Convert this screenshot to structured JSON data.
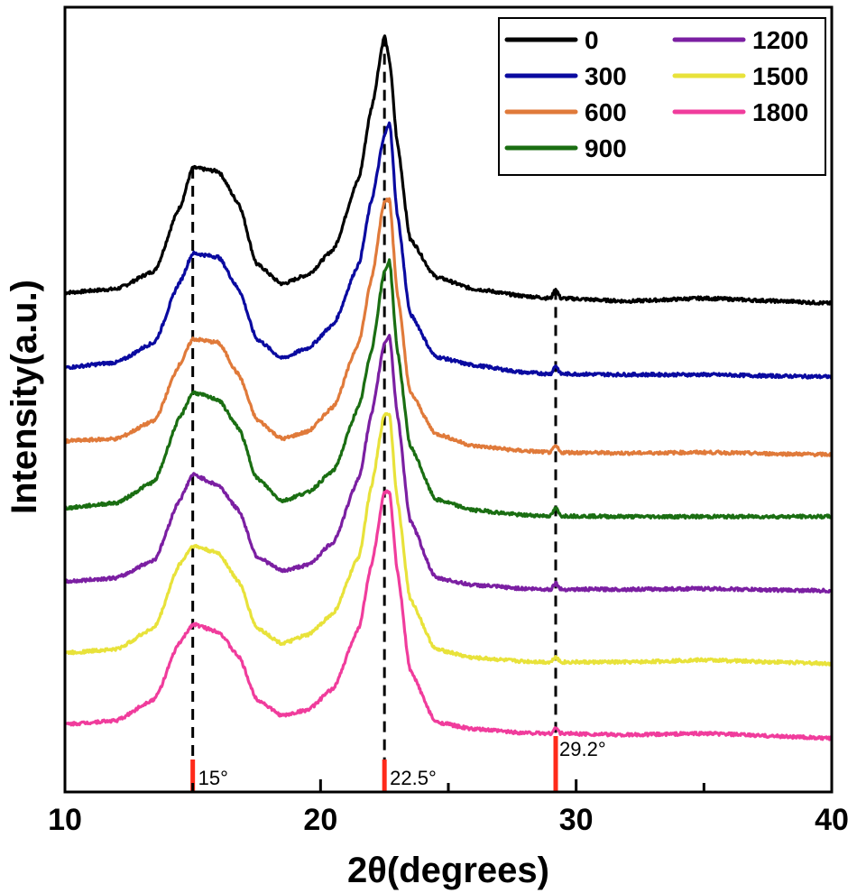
{
  "chart_data": {
    "type": "line",
    "xlabel": "2θ(degrees)",
    "ylabel": "Intensity(a.u.)",
    "xlim": [
      10,
      40
    ],
    "x_ticks": [
      "10",
      "20",
      "30",
      "40"
    ],
    "y_tick_labels_shown": false,
    "legend_position": "top-right",
    "stacked_offset_traces": true,
    "series": [
      {
        "name": "0",
        "color": "#000000",
        "baseline": 7.9,
        "points": [
          [
            10,
            8.0
          ],
          [
            12,
            8.05
          ],
          [
            13.5,
            8.3
          ],
          [
            14.5,
            9.2
          ],
          [
            15,
            9.75
          ],
          [
            16,
            9.7
          ],
          [
            16.8,
            9.25
          ],
          [
            17.5,
            8.4
          ],
          [
            18.5,
            8.12
          ],
          [
            19.5,
            8.25
          ],
          [
            20.5,
            8.6
          ],
          [
            21.5,
            9.6
          ],
          [
            22,
            10.6
          ],
          [
            22.5,
            11.6
          ],
          [
            22.7,
            11.25
          ],
          [
            23,
            10.1
          ],
          [
            23.5,
            8.75
          ],
          [
            24.5,
            8.22
          ],
          [
            26,
            8.05
          ],
          [
            28,
            7.95
          ],
          [
            29,
            7.92
          ],
          [
            29.2,
            8.05
          ],
          [
            29.4,
            7.92
          ],
          [
            32,
            7.88
          ],
          [
            35,
            7.92
          ],
          [
            38,
            7.88
          ],
          [
            40,
            7.85
          ]
        ]
      },
      {
        "name": "300",
        "color": "#0a0aa0",
        "baseline": 6.8,
        "points": [
          [
            10,
            6.95
          ],
          [
            12,
            7.02
          ],
          [
            13.5,
            7.3
          ],
          [
            14.5,
            8.15
          ],
          [
            15,
            8.55
          ],
          [
            16,
            8.5
          ],
          [
            16.8,
            8.05
          ],
          [
            17.5,
            7.35
          ],
          [
            18.5,
            7.08
          ],
          [
            19.5,
            7.22
          ],
          [
            20.5,
            7.55
          ],
          [
            21.5,
            8.4
          ],
          [
            22,
            9.3
          ],
          [
            22.5,
            10.2
          ],
          [
            22.7,
            10.4
          ],
          [
            23,
            9.1
          ],
          [
            23.5,
            7.7
          ],
          [
            24.5,
            7.1
          ],
          [
            26,
            6.98
          ],
          [
            28,
            6.88
          ],
          [
            29,
            6.86
          ],
          [
            29.2,
            6.98
          ],
          [
            29.4,
            6.86
          ],
          [
            32,
            6.85
          ],
          [
            35,
            6.85
          ],
          [
            38,
            6.83
          ],
          [
            40,
            6.82
          ]
        ]
      },
      {
        "name": "600",
        "color": "#e07a3a",
        "baseline": 5.7,
        "points": [
          [
            10,
            5.92
          ],
          [
            12,
            5.95
          ],
          [
            13.5,
            6.2
          ],
          [
            14.5,
            7.0
          ],
          [
            15,
            7.35
          ],
          [
            16,
            7.3
          ],
          [
            16.8,
            6.85
          ],
          [
            17.5,
            6.22
          ],
          [
            18.5,
            5.95
          ],
          [
            19.5,
            6.05
          ],
          [
            20.5,
            6.4
          ],
          [
            21.5,
            7.3
          ],
          [
            22,
            8.2
          ],
          [
            22.5,
            9.3
          ],
          [
            22.7,
            9.3
          ],
          [
            23,
            8.0
          ],
          [
            23.5,
            6.6
          ],
          [
            24.5,
            6.02
          ],
          [
            26,
            5.85
          ],
          [
            28,
            5.78
          ],
          [
            29,
            5.76
          ],
          [
            29.2,
            5.85
          ],
          [
            29.4,
            5.76
          ],
          [
            32,
            5.75
          ],
          [
            35,
            5.76
          ],
          [
            38,
            5.74
          ],
          [
            40,
            5.73
          ]
        ]
      },
      {
        "name": "900",
        "color": "#1a6e12",
        "baseline": 4.8,
        "points": [
          [
            10,
            4.98
          ],
          [
            12,
            5.05
          ],
          [
            13.5,
            5.35
          ],
          [
            14.5,
            6.25
          ],
          [
            15,
            6.6
          ],
          [
            16,
            6.5
          ],
          [
            16.8,
            6.1
          ],
          [
            17.5,
            5.4
          ],
          [
            18.5,
            5.08
          ],
          [
            19.5,
            5.2
          ],
          [
            20.5,
            5.5
          ],
          [
            21.5,
            6.4
          ],
          [
            22,
            7.2
          ],
          [
            22.5,
            8.3
          ],
          [
            22.7,
            8.45
          ],
          [
            23,
            7.2
          ],
          [
            23.5,
            5.85
          ],
          [
            24.5,
            5.1
          ],
          [
            26,
            4.95
          ],
          [
            28,
            4.88
          ],
          [
            29,
            4.87
          ],
          [
            29.2,
            4.98
          ],
          [
            29.4,
            4.87
          ],
          [
            32,
            4.86
          ],
          [
            35,
            4.86
          ],
          [
            38,
            4.86
          ],
          [
            40,
            4.86
          ]
        ]
      },
      {
        "name": "1200",
        "color": "#7b1fa2",
        "baseline": 3.8,
        "points": [
          [
            10,
            3.95
          ],
          [
            12,
            4.0
          ],
          [
            13.5,
            4.25
          ],
          [
            14.5,
            5.1
          ],
          [
            15,
            5.45
          ],
          [
            16,
            5.3
          ],
          [
            16.8,
            4.95
          ],
          [
            17.5,
            4.3
          ],
          [
            18.5,
            4.1
          ],
          [
            19.5,
            4.18
          ],
          [
            20.5,
            4.5
          ],
          [
            21.5,
            5.4
          ],
          [
            22,
            6.3
          ],
          [
            22.5,
            7.3
          ],
          [
            22.7,
            7.4
          ],
          [
            23,
            6.3
          ],
          [
            23.5,
            4.8
          ],
          [
            24.5,
            4.0
          ],
          [
            26,
            3.9
          ],
          [
            28,
            3.85
          ],
          [
            29,
            3.84
          ],
          [
            29.2,
            3.93
          ],
          [
            29.4,
            3.84
          ],
          [
            32,
            3.84
          ],
          [
            35,
            3.85
          ],
          [
            38,
            3.83
          ],
          [
            40,
            3.82
          ]
        ]
      },
      {
        "name": "1500",
        "color": "#e8e23a",
        "baseline": 2.8,
        "points": [
          [
            10,
            2.95
          ],
          [
            12,
            3.0
          ],
          [
            13.5,
            3.3
          ],
          [
            14.5,
            4.2
          ],
          [
            15,
            4.45
          ],
          [
            16,
            4.35
          ],
          [
            16.8,
            3.95
          ],
          [
            17.5,
            3.3
          ],
          [
            18.5,
            3.08
          ],
          [
            19.5,
            3.2
          ],
          [
            20.5,
            3.5
          ],
          [
            21.5,
            4.3
          ],
          [
            22,
            5.3
          ],
          [
            22.5,
            6.3
          ],
          [
            22.7,
            6.3
          ],
          [
            23,
            5.1
          ],
          [
            23.5,
            3.7
          ],
          [
            24.5,
            3.0
          ],
          [
            26,
            2.88
          ],
          [
            28,
            2.83
          ],
          [
            29,
            2.82
          ],
          [
            29.2,
            2.9
          ],
          [
            29.4,
            2.82
          ],
          [
            32,
            2.82
          ],
          [
            35,
            2.85
          ],
          [
            38,
            2.82
          ],
          [
            40,
            2.8
          ]
        ]
      },
      {
        "name": "1800",
        "color": "#f03c9c",
        "baseline": 1.8,
        "points": [
          [
            10,
            1.95
          ],
          [
            12,
            2.0
          ],
          [
            13.5,
            2.3
          ],
          [
            14.5,
            3.1
          ],
          [
            15,
            3.35
          ],
          [
            16,
            3.25
          ],
          [
            16.8,
            2.9
          ],
          [
            17.5,
            2.3
          ],
          [
            18.5,
            2.07
          ],
          [
            19.5,
            2.15
          ],
          [
            20.5,
            2.45
          ],
          [
            21.5,
            3.3
          ],
          [
            22,
            4.2
          ],
          [
            22.5,
            5.2
          ],
          [
            22.7,
            5.2
          ],
          [
            23,
            4.1
          ],
          [
            23.5,
            2.7
          ],
          [
            24.5,
            1.98
          ],
          [
            26,
            1.88
          ],
          [
            28,
            1.83
          ],
          [
            29,
            1.82
          ],
          [
            29.2,
            1.9
          ],
          [
            29.4,
            1.82
          ],
          [
            32,
            1.8
          ],
          [
            35,
            1.82
          ],
          [
            38,
            1.78
          ],
          [
            40,
            1.75
          ]
        ]
      }
    ],
    "peak_markers": [
      {
        "x": 15,
        "label": "15°"
      },
      {
        "x": 22.5,
        "label": "22.5°"
      },
      {
        "x": 29.2,
        "label": "29.2°"
      }
    ],
    "peak_marker_color": "#ff2a1a"
  }
}
